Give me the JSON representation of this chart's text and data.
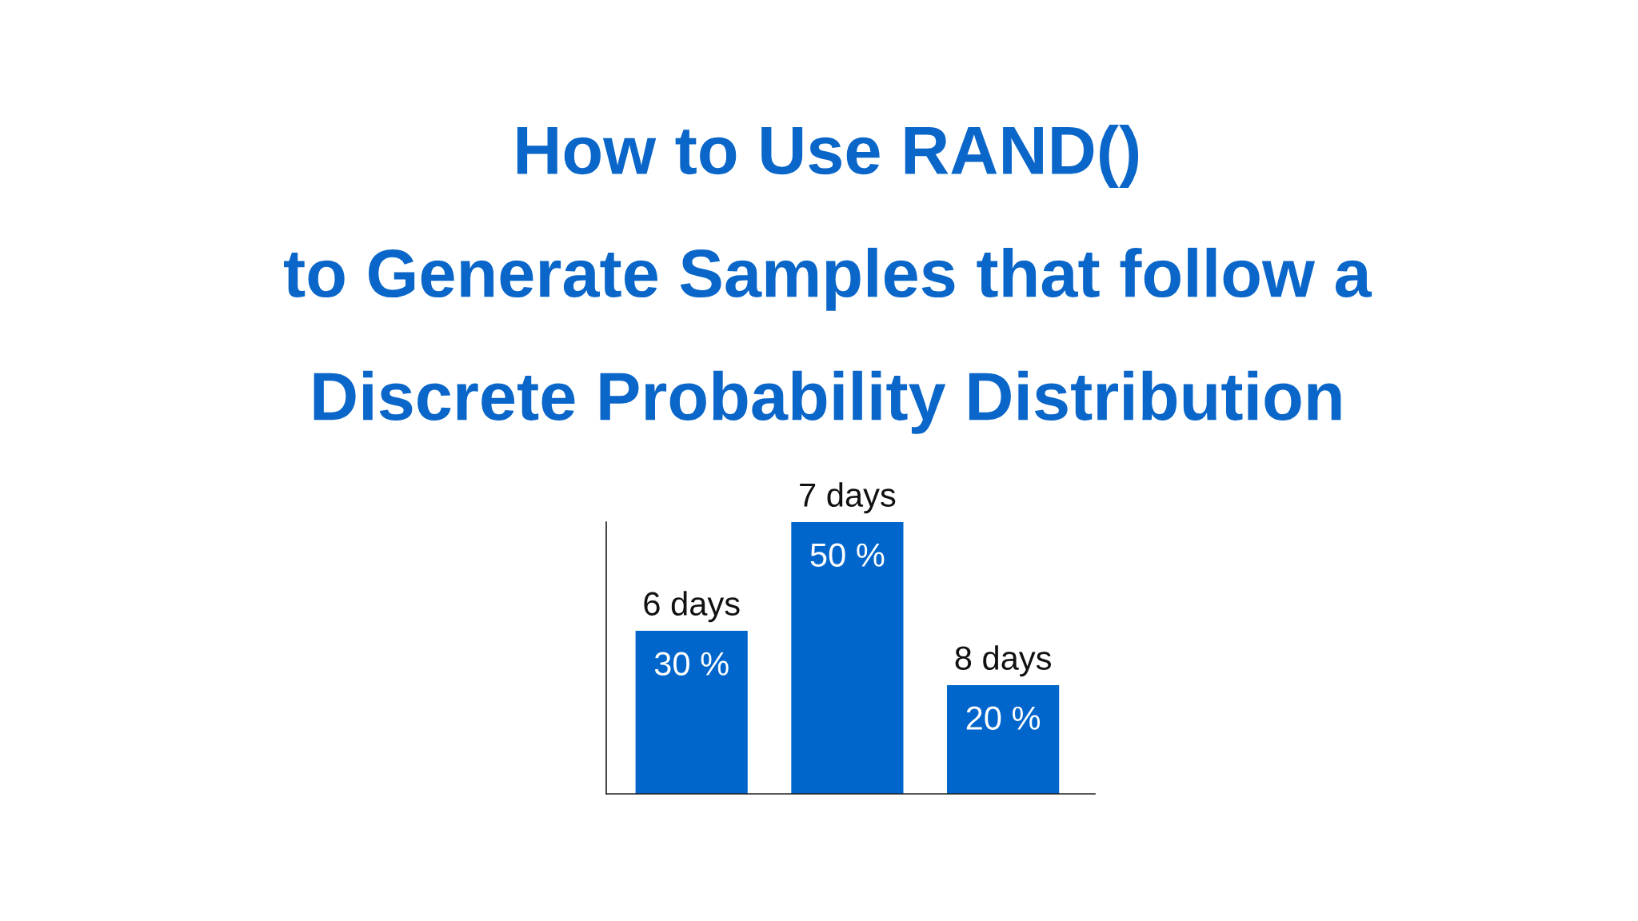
{
  "chart_data": {
    "type": "bar",
    "title": "How to Use RAND()\nto Generate Samples that follow a\nDiscrete Probability Distribution",
    "categories": [
      "6 days",
      "7 days",
      "8 days"
    ],
    "values": [
      30,
      50,
      20
    ],
    "value_labels": [
      "30 %",
      "50 %",
      "20 %"
    ],
    "color": "#0066cc",
    "ylim": [
      0,
      50
    ]
  }
}
